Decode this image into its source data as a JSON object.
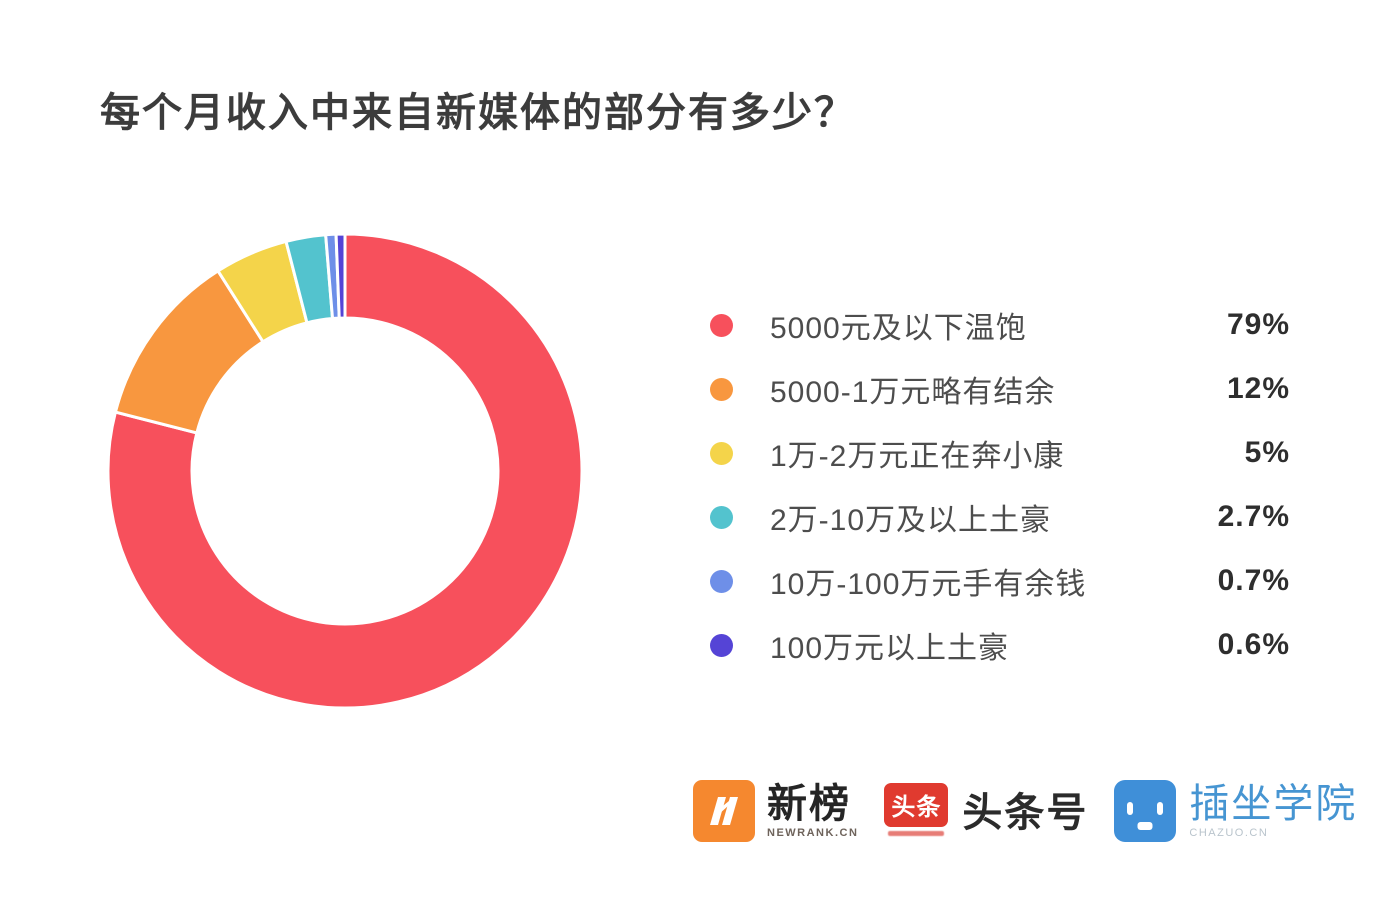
{
  "chart_data": {
    "type": "pie",
    "variant": "donut",
    "title": "每个月收入中来自新媒体的部分有多少？",
    "legend_position": "right",
    "series": [
      {
        "label": "5000元及以下温饱",
        "value": 79,
        "value_label": "79%",
        "color": "#F7505C"
      },
      {
        "label": "5000-1万元略有结余",
        "value": 12,
        "value_label": "12%",
        "color": "#F8973F"
      },
      {
        "label": "1万-2万元正在奔小康",
        "value": 5,
        "value_label": "5%",
        "color": "#F4D44A"
      },
      {
        "label": "2万-10万及以上土豪",
        "value": 2.7,
        "value_label": "2.7%",
        "color": "#53C3CE"
      },
      {
        "label": "10万-100万元手有余钱",
        "value": 0.7,
        "value_label": "0.7%",
        "color": "#6E8FE8"
      },
      {
        "label": "100万元以上土豪",
        "value": 0.6,
        "value_label": "0.6%",
        "color": "#5544D6"
      }
    ]
  },
  "footer": {
    "logos": [
      {
        "title": "新榜",
        "subtitle": "NEWRANK.CN",
        "icon_color": "#F5882F"
      },
      {
        "title": "头条号",
        "icon_text": "头条",
        "icon_color": "#E03A2F"
      },
      {
        "title": "插坐学院",
        "subtitle": "CHAZUO.CN",
        "icon_color": "#3F8FD8"
      }
    ]
  }
}
